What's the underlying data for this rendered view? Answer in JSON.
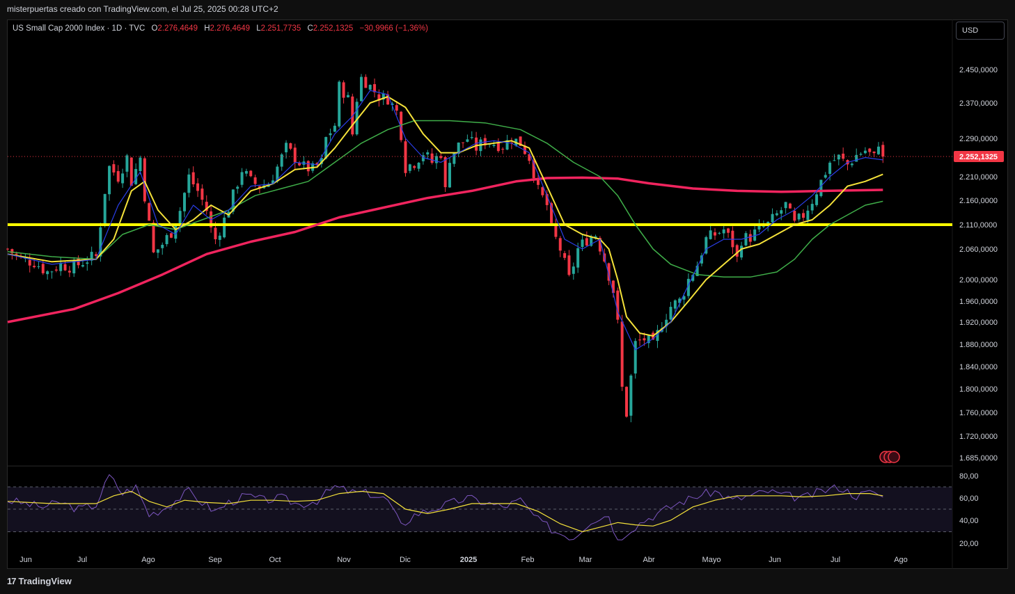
{
  "header": {
    "attribution": "misterpuertas creado con TradingView.com, el Jul 25, 2025 00:28 UTC+2"
  },
  "legend": {
    "symbol": "US Small Cap 2000 Index · 1D · TVC",
    "open_label": "O",
    "open": "2.276,4649",
    "high_label": "H",
    "high": "2.276,4649",
    "low_label": "L",
    "low": "2.251,7735",
    "close_label": "C",
    "close": "2.252,1325",
    "change": "−30,9966 (−1,36%)"
  },
  "currency_button": "USD",
  "footer": {
    "logo": "17",
    "brand": "TradingView"
  },
  "colors": {
    "up": "#26a69a",
    "down": "#f23645",
    "ma_fast": "#2a3ee8",
    "ma_mid": "#f5e23a",
    "ma_slow": "#3fae49",
    "ma_long": "#f0245e",
    "level": "#ffff00",
    "rsi": "#7e57c2",
    "rsi_ma": "#f5e23a",
    "price_tag": "#f23645"
  },
  "chart_data": {
    "type": "candlestick",
    "title": "US Small Cap 2000 Index",
    "timeframe": "1D",
    "x_labels": [
      "Jun",
      "Jul",
      "Ago",
      "Sep",
      "Oct",
      "Nov",
      "Dic",
      "2025",
      "Feb",
      "Mar",
      "Abr",
      "Mayo",
      "Jun",
      "Jul",
      "Ago"
    ],
    "y_labels": [
      "2.450,0000",
      "2.370,0000",
      "2.290,0000",
      "2.210,0000",
      "2.160,0000",
      "2.110,0000",
      "2.060,0000",
      "2.000,0000",
      "1.960,0000",
      "1.920,0000",
      "1.880,0000",
      "1.840,0000",
      "1.800,0000",
      "1.760,0000",
      "1.720,0000",
      "1.685,0000"
    ],
    "y_ticks": [
      2450,
      2370,
      2290,
      2210,
      2160,
      2110,
      2060,
      2000,
      1960,
      1920,
      1880,
      1840,
      1800,
      1760,
      1720,
      1685
    ],
    "last_price": 2252.1325,
    "last_price_label": "2.252,1325",
    "horizontal_level": 2110,
    "close_path": [
      [
        0,
        2060
      ],
      [
        3,
        2040
      ],
      [
        6,
        2035
      ],
      [
        9,
        2015
      ],
      [
        12,
        2030
      ],
      [
        15,
        2025
      ],
      [
        18,
        2040
      ],
      [
        20,
        2045
      ],
      [
        22,
        2180
      ],
      [
        23,
        2230
      ],
      [
        25,
        2210
      ],
      [
        27,
        2250
      ],
      [
        28,
        2200
      ],
      [
        30,
        2250
      ],
      [
        31,
        2170
      ],
      [
        33,
        2050
      ],
      [
        35,
        2070
      ],
      [
        37,
        2095
      ],
      [
        39,
        2140
      ],
      [
        41,
        2210
      ],
      [
        43,
        2180
      ],
      [
        45,
        2140
      ],
      [
        46,
        2100
      ],
      [
        47,
        2080
      ],
      [
        49,
        2120
      ],
      [
        51,
        2170
      ],
      [
        53,
        2225
      ],
      [
        55,
        2200
      ],
      [
        57,
        2190
      ],
      [
        59,
        2195
      ],
      [
        61,
        2230
      ],
      [
        63,
        2270
      ],
      [
        65,
        2250
      ],
      [
        67,
        2230
      ],
      [
        69,
        2225
      ],
      [
        71,
        2240
      ],
      [
        72,
        2290
      ],
      [
        74,
        2320
      ],
      [
        75,
        2410
      ],
      [
        77,
        2380
      ],
      [
        78,
        2300
      ],
      [
        79,
        2380
      ],
      [
        80,
        2430
      ],
      [
        82,
        2410
      ],
      [
        84,
        2385
      ],
      [
        86,
        2380
      ],
      [
        88,
        2350
      ],
      [
        89,
        2300
      ],
      [
        90,
        2230
      ],
      [
        92,
        2240
      ],
      [
        94,
        2260
      ],
      [
        96,
        2240
      ],
      [
        98,
        2260
      ],
      [
        99,
        2180
      ],
      [
        100,
        2250
      ],
      [
        102,
        2275
      ],
      [
        104,
        2290
      ],
      [
        106,
        2270
      ],
      [
        108,
        2285
      ],
      [
        110,
        2280
      ],
      [
        112,
        2275
      ],
      [
        114,
        2290
      ],
      [
        116,
        2280
      ],
      [
        118,
        2250
      ],
      [
        119,
        2220
      ],
      [
        120,
        2180
      ],
      [
        122,
        2150
      ],
      [
        123,
        2100
      ],
      [
        125,
        2060
      ],
      [
        126,
        2030
      ],
      [
        127,
        2000
      ],
      [
        129,
        2060
      ],
      [
        131,
        2080
      ],
      [
        133,
        2090
      ],
      [
        135,
        2040
      ],
      [
        137,
        1980
      ],
      [
        138,
        1915
      ],
      [
        139,
        1800
      ],
      [
        140,
        1760
      ],
      [
        141,
        1820
      ],
      [
        142,
        1880
      ],
      [
        144,
        1890
      ],
      [
        146,
        1875
      ],
      [
        148,
        1920
      ],
      [
        150,
        1950
      ],
      [
        152,
        1960
      ],
      [
        154,
        2000
      ],
      [
        156,
        2030
      ],
      [
        158,
        2080
      ],
      [
        160,
        2090
      ],
      [
        162,
        2100
      ],
      [
        164,
        2070
      ],
      [
        165,
        2040
      ],
      [
        166,
        2080
      ],
      [
        168,
        2085
      ],
      [
        170,
        2100
      ],
      [
        172,
        2110
      ],
      [
        174,
        2130
      ],
      [
        176,
        2150
      ],
      [
        178,
        2110
      ],
      [
        180,
        2130
      ],
      [
        182,
        2160
      ],
      [
        184,
        2200
      ],
      [
        186,
        2240
      ],
      [
        188,
        2250
      ],
      [
        190,
        2235
      ],
      [
        192,
        2255
      ],
      [
        194,
        2265
      ],
      [
        196,
        2250
      ],
      [
        197,
        2283
      ],
      [
        198,
        2252.1325
      ]
    ],
    "ma_fast": [
      [
        0,
        2050
      ],
      [
        10,
        2030
      ],
      [
        20,
        2040
      ],
      [
        25,
        2150
      ],
      [
        30,
        2220
      ],
      [
        34,
        2110
      ],
      [
        38,
        2090
      ],
      [
        42,
        2150
      ],
      [
        46,
        2120
      ],
      [
        50,
        2140
      ],
      [
        55,
        2190
      ],
      [
        60,
        2195
      ],
      [
        65,
        2240
      ],
      [
        70,
        2235
      ],
      [
        74,
        2300
      ],
      [
        78,
        2340
      ],
      [
        82,
        2400
      ],
      [
        86,
        2390
      ],
      [
        90,
        2290
      ],
      [
        94,
        2250
      ],
      [
        98,
        2240
      ],
      [
        102,
        2260
      ],
      [
        106,
        2280
      ],
      [
        110,
        2285
      ],
      [
        114,
        2280
      ],
      [
        118,
        2260
      ],
      [
        122,
        2170
      ],
      [
        126,
        2080
      ],
      [
        130,
        2060
      ],
      [
        134,
        2080
      ],
      [
        138,
        1940
      ],
      [
        142,
        1870
      ],
      [
        146,
        1890
      ],
      [
        150,
        1920
      ],
      [
        154,
        1990
      ],
      [
        158,
        2060
      ],
      [
        162,
        2080
      ],
      [
        166,
        2080
      ],
      [
        170,
        2090
      ],
      [
        174,
        2120
      ],
      [
        178,
        2140
      ],
      [
        182,
        2170
      ],
      [
        186,
        2210
      ],
      [
        190,
        2240
      ],
      [
        194,
        2250
      ],
      [
        198,
        2245
      ]
    ],
    "ma_mid": [
      [
        0,
        2050
      ],
      [
        10,
        2035
      ],
      [
        20,
        2040
      ],
      [
        24,
        2080
      ],
      [
        28,
        2180
      ],
      [
        31,
        2200
      ],
      [
        34,
        2140
      ],
      [
        38,
        2100
      ],
      [
        42,
        2120
      ],
      [
        46,
        2150
      ],
      [
        50,
        2130
      ],
      [
        55,
        2180
      ],
      [
        60,
        2195
      ],
      [
        65,
        2225
      ],
      [
        70,
        2230
      ],
      [
        74,
        2270
      ],
      [
        78,
        2320
      ],
      [
        82,
        2370
      ],
      [
        86,
        2385
      ],
      [
        90,
        2360
      ],
      [
        94,
        2300
      ],
      [
        98,
        2260
      ],
      [
        102,
        2260
      ],
      [
        106,
        2275
      ],
      [
        110,
        2280
      ],
      [
        114,
        2285
      ],
      [
        118,
        2270
      ],
      [
        122,
        2190
      ],
      [
        126,
        2110
      ],
      [
        130,
        2090
      ],
      [
        134,
        2080
      ],
      [
        136,
        2060
      ],
      [
        138,
        2000
      ],
      [
        140,
        1930
      ],
      [
        143,
        1900
      ],
      [
        146,
        1895
      ],
      [
        150,
        1920
      ],
      [
        154,
        1960
      ],
      [
        158,
        2000
      ],
      [
        162,
        2030
      ],
      [
        166,
        2060
      ],
      [
        170,
        2070
      ],
      [
        174,
        2090
      ],
      [
        178,
        2110
      ],
      [
        182,
        2120
      ],
      [
        186,
        2150
      ],
      [
        190,
        2190
      ],
      [
        194,
        2200
      ],
      [
        198,
        2215
      ]
    ],
    "ma_slow": [
      [
        0,
        2055
      ],
      [
        10,
        2045
      ],
      [
        20,
        2040
      ],
      [
        26,
        2090
      ],
      [
        32,
        2110
      ],
      [
        38,
        2100
      ],
      [
        44,
        2120
      ],
      [
        50,
        2140
      ],
      [
        56,
        2170
      ],
      [
        62,
        2185
      ],
      [
        68,
        2200
      ],
      [
        74,
        2240
      ],
      [
        80,
        2280
      ],
      [
        86,
        2310
      ],
      [
        92,
        2330
      ],
      [
        100,
        2330
      ],
      [
        108,
        2325
      ],
      [
        116,
        2310
      ],
      [
        122,
        2280
      ],
      [
        128,
        2240
      ],
      [
        134,
        2210
      ],
      [
        138,
        2170
      ],
      [
        142,
        2110
      ],
      [
        146,
        2060
      ],
      [
        150,
        2030
      ],
      [
        156,
        2010
      ],
      [
        162,
        2005
      ],
      [
        168,
        2005
      ],
      [
        174,
        2015
      ],
      [
        178,
        2040
      ],
      [
        182,
        2080
      ],
      [
        186,
        2110
      ],
      [
        190,
        2130
      ],
      [
        194,
        2150
      ],
      [
        198,
        2158
      ]
    ],
    "ma_long": [
      [
        0,
        1920
      ],
      [
        15,
        1945
      ],
      [
        25,
        1975
      ],
      [
        35,
        2010
      ],
      [
        45,
        2050
      ],
      [
        55,
        2075
      ],
      [
        65,
        2095
      ],
      [
        75,
        2125
      ],
      [
        85,
        2145
      ],
      [
        95,
        2165
      ],
      [
        105,
        2180
      ],
      [
        115,
        2200
      ],
      [
        122,
        2207
      ],
      [
        130,
        2208
      ],
      [
        138,
        2206
      ],
      [
        145,
        2196
      ],
      [
        155,
        2185
      ],
      [
        165,
        2180
      ],
      [
        175,
        2178
      ],
      [
        185,
        2180
      ],
      [
        198,
        2182
      ]
    ],
    "rsi": {
      "y_labels": [
        "80,00",
        "60,00",
        "40,00",
        "20,00"
      ],
      "y_ticks": [
        80,
        60,
        40,
        20
      ],
      "bands": [
        70,
        50,
        30
      ],
      "ylim": [
        15,
        85
      ],
      "values": [
        [
          0,
          58
        ],
        [
          4,
          55
        ],
        [
          8,
          52
        ],
        [
          12,
          56
        ],
        [
          16,
          50
        ],
        [
          20,
          54
        ],
        [
          23,
          80
        ],
        [
          26,
          64
        ],
        [
          29,
          70
        ],
        [
          32,
          45
        ],
        [
          35,
          50
        ],
        [
          38,
          58
        ],
        [
          41,
          66
        ],
        [
          44,
          56
        ],
        [
          47,
          48
        ],
        [
          50,
          56
        ],
        [
          54,
          62
        ],
        [
          58,
          58
        ],
        [
          62,
          60
        ],
        [
          66,
          54
        ],
        [
          70,
          58
        ],
        [
          74,
          70
        ],
        [
          78,
          65
        ],
        [
          82,
          64
        ],
        [
          86,
          58
        ],
        [
          89,
          35
        ],
        [
          92,
          45
        ],
        [
          96,
          50
        ],
        [
          100,
          55
        ],
        [
          104,
          60
        ],
        [
          108,
          56
        ],
        [
          112,
          52
        ],
        [
          116,
          58
        ],
        [
          120,
          40
        ],
        [
          124,
          30
        ],
        [
          128,
          25
        ],
        [
          132,
          40
        ],
        [
          136,
          45
        ],
        [
          138,
          22
        ],
        [
          140,
          30
        ],
        [
          144,
          40
        ],
        [
          148,
          48
        ],
        [
          152,
          56
        ],
        [
          156,
          62
        ],
        [
          160,
          66
        ],
        [
          164,
          58
        ],
        [
          168,
          62
        ],
        [
          172,
          66
        ],
        [
          176,
          62
        ],
        [
          180,
          60
        ],
        [
          184,
          66
        ],
        [
          188,
          70
        ],
        [
          192,
          62
        ],
        [
          196,
          66
        ],
        [
          198,
          60
        ]
      ],
      "ma": [
        [
          0,
          57
        ],
        [
          10,
          55
        ],
        [
          20,
          55
        ],
        [
          24,
          62
        ],
        [
          28,
          66
        ],
        [
          32,
          57
        ],
        [
          36,
          52
        ],
        [
          40,
          58
        ],
        [
          45,
          56
        ],
        [
          50,
          55
        ],
        [
          55,
          58
        ],
        [
          60,
          58
        ],
        [
          65,
          57
        ],
        [
          70,
          58
        ],
        [
          75,
          64
        ],
        [
          80,
          66
        ],
        [
          85,
          64
        ],
        [
          90,
          50
        ],
        [
          95,
          46
        ],
        [
          100,
          50
        ],
        [
          105,
          55
        ],
        [
          110,
          55
        ],
        [
          115,
          55
        ],
        [
          120,
          48
        ],
        [
          125,
          37
        ],
        [
          130,
          30
        ],
        [
          134,
          34
        ],
        [
          138,
          38
        ],
        [
          142,
          36
        ],
        [
          146,
          35
        ],
        [
          150,
          40
        ],
        [
          155,
          52
        ],
        [
          160,
          58
        ],
        [
          165,
          62
        ],
        [
          170,
          62
        ],
        [
          175,
          62
        ],
        [
          180,
          61
        ],
        [
          185,
          62
        ],
        [
          190,
          64
        ],
        [
          195,
          64
        ],
        [
          198,
          62
        ]
      ]
    }
  }
}
